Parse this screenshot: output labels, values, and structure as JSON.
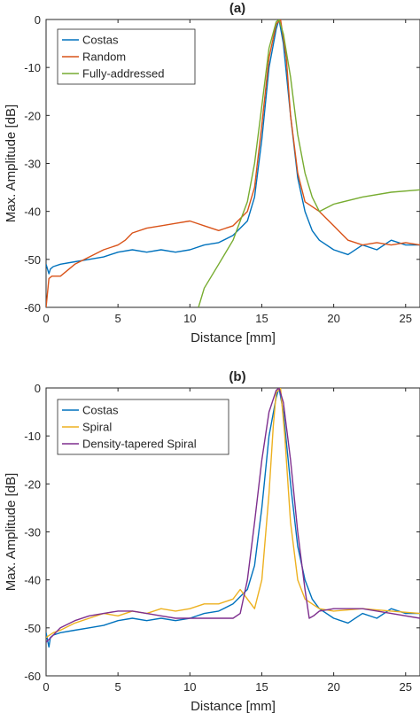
{
  "chart_data": [
    {
      "type": "line",
      "title": "(a)",
      "xlabel": "Distance [mm]",
      "ylabel": "Max. Amplitude [dB]",
      "xlim": [
        0,
        26
      ],
      "ylim": [
        -60,
        0
      ],
      "xticks": [
        0,
        5,
        10,
        15,
        20,
        25
      ],
      "yticks": [
        0,
        -10,
        -20,
        -30,
        -40,
        -50,
        -60
      ],
      "grid": false,
      "legend_position": "top-left",
      "series": [
        {
          "name": "Costas",
          "color": "#0072BD",
          "x": [
            0,
            0.2,
            0.3,
            0.5,
            1,
            2,
            3,
            4,
            5,
            6,
            7,
            8,
            9,
            10,
            11,
            12,
            13,
            14,
            14.5,
            15,
            15.5,
            16,
            16.2,
            16.5,
            17,
            17.5,
            18,
            18.5,
            19,
            20,
            21,
            22,
            23,
            24,
            25,
            26
          ],
          "y": [
            -51,
            -53,
            -52,
            -51.5,
            -51,
            -50.5,
            -50,
            -49.5,
            -48.5,
            -48,
            -48.5,
            -48,
            -48.5,
            -48,
            -47,
            -46.5,
            -45,
            -42,
            -37,
            -25,
            -10,
            -2,
            0,
            -5,
            -20,
            -33,
            -40,
            -44,
            -46,
            -48,
            -49,
            -47,
            -48,
            -46,
            -47,
            -47
          ]
        },
        {
          "name": "Random",
          "color": "#D95319",
          "x": [
            0,
            0.2,
            0.4,
            1,
            2,
            3,
            4,
            5,
            5.5,
            6,
            7,
            8,
            9,
            10,
            11,
            12,
            13,
            14,
            14.5,
            15,
            15.5,
            16,
            16.3,
            16.7,
            17,
            17.5,
            18,
            19,
            20,
            21,
            22,
            23,
            24,
            25,
            26
          ],
          "y": [
            -60,
            -54,
            -53.5,
            -53.5,
            -51,
            -49.5,
            -48,
            -47,
            -46,
            -44.5,
            -43.5,
            -43,
            -42.5,
            -42,
            -43,
            -44,
            -43,
            -40,
            -35,
            -22,
            -8,
            -1,
            0,
            -8,
            -20,
            -32,
            -38,
            -40,
            -43,
            -46,
            -47,
            -46.5,
            -47,
            -46.5,
            -47
          ]
        },
        {
          "name": "Fully-addressed",
          "color": "#77AC30",
          "x": [
            10.6,
            11,
            12,
            13,
            14,
            14.5,
            15,
            15.5,
            16,
            16.2,
            16.5,
            17,
            17.5,
            18,
            18.5,
            19,
            20,
            22,
            24,
            26
          ],
          "y": [
            -60,
            -56,
            -51,
            -46,
            -38,
            -30,
            -18,
            -6,
            -0.5,
            0,
            -3,
            -12,
            -24,
            -32,
            -37,
            -40,
            -38.5,
            -37,
            -36,
            -35.5
          ]
        }
      ]
    },
    {
      "type": "line",
      "title": "(b)",
      "xlabel": "Distance [mm]",
      "ylabel": "Max. Amplitude [dB]",
      "xlim": [
        0,
        26
      ],
      "ylim": [
        -60,
        0
      ],
      "xticks": [
        0,
        5,
        10,
        15,
        20,
        25
      ],
      "yticks": [
        0,
        -10,
        -20,
        -30,
        -40,
        -50,
        -60
      ],
      "grid": false,
      "legend_position": "top-left",
      "series": [
        {
          "name": "Costas",
          "color": "#0072BD",
          "x": [
            0,
            0.2,
            0.3,
            0.5,
            1,
            2,
            3,
            4,
            5,
            6,
            7,
            8,
            9,
            10,
            11,
            12,
            13,
            14,
            14.5,
            15,
            15.5,
            16,
            16.2,
            16.5,
            17,
            17.5,
            18,
            18.5,
            19,
            20,
            21,
            22,
            23,
            24,
            25,
            26
          ],
          "y": [
            -51,
            -54,
            -52,
            -51.5,
            -51,
            -50.5,
            -50,
            -49.5,
            -48.5,
            -48,
            -48.5,
            -48,
            -48.5,
            -48,
            -47,
            -46.5,
            -45,
            -42,
            -37,
            -25,
            -10,
            -2,
            0,
            -5,
            -20,
            -33,
            -40,
            -44,
            -46,
            -48,
            -49,
            -47,
            -48,
            -46,
            -47,
            -47
          ]
        },
        {
          "name": "Spiral",
          "color": "#EDB120",
          "x": [
            0,
            0.5,
            1,
            2,
            3,
            4,
            5,
            6,
            7,
            8,
            9,
            10,
            11,
            12,
            13,
            13.5,
            14,
            14.5,
            15,
            15.5,
            15.8,
            16,
            16.3,
            16.6,
            17,
            17.5,
            18,
            18.5,
            19,
            20,
            22,
            24,
            26
          ],
          "y": [
            -52,
            -51,
            -50.5,
            -49,
            -48,
            -47,
            -47.5,
            -46.5,
            -47,
            -46,
            -46.5,
            -46,
            -45,
            -45,
            -44,
            -42,
            -44,
            -46,
            -40,
            -22,
            -8,
            -1,
            0,
            -10,
            -28,
            -40,
            -44,
            -45,
            -46,
            -46.5,
            -46,
            -46.5,
            -47
          ]
        },
        {
          "name": "Density-tapered Spiral",
          "color": "#7E2F8E",
          "x": [
            0,
            0.5,
            1,
            2,
            3,
            4,
            5,
            6,
            7,
            8,
            9,
            10,
            11,
            12,
            13,
            13.5,
            14,
            14.5,
            15,
            15.5,
            16,
            16.2,
            16.5,
            17,
            17.5,
            18,
            18.3,
            18.6,
            19,
            20,
            22,
            24,
            26
          ],
          "y": [
            -53,
            -51.5,
            -50,
            -48.5,
            -47.5,
            -47,
            -46.5,
            -46.5,
            -47,
            -47.5,
            -48,
            -48,
            -48,
            -48,
            -48,
            -47,
            -40,
            -28,
            -15,
            -5,
            -0.5,
            0,
            -3,
            -15,
            -30,
            -42,
            -48,
            -47.5,
            -46.5,
            -46,
            -46,
            -47,
            -48
          ]
        }
      ]
    }
  ]
}
